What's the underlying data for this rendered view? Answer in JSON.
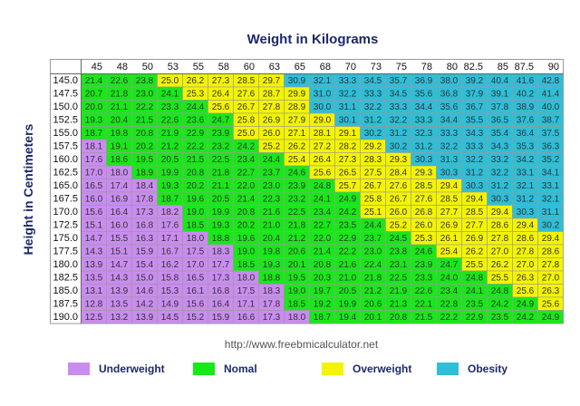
{
  "chart_data": {
    "type": "table",
    "title": "Weight in Kilograms",
    "ylabel": "Height in Centimeters",
    "weights_kg": [
      "45",
      "48",
      "50",
      "53",
      "55",
      "58",
      "60",
      "63",
      "65",
      "68",
      "70",
      "73",
      "75",
      "78",
      "80",
      "82.5",
      "85",
      "87.5",
      "90"
    ],
    "heights_cm": [
      "145.0",
      "147.5",
      "150.0",
      "152.5",
      "155.0",
      "157.5",
      "160.0",
      "162.5",
      "165.0",
      "167.5",
      "170.0",
      "172.5",
      "175.0",
      "177.5",
      "180.0",
      "182.5",
      "185.0",
      "187.5",
      "190.0"
    ],
    "bmi_values": [
      [
        "21.4",
        "22.6",
        "23.8",
        "25.0",
        "26.2",
        "27.3",
        "28.5",
        "29.7",
        "30.9",
        "32.1",
        "33.3",
        "34.5",
        "35.7",
        "36.9",
        "38.0",
        "39.2",
        "40.4",
        "41.6",
        "42.8"
      ],
      [
        "20.7",
        "21.8",
        "23.0",
        "24.1",
        "25.3",
        "26.4",
        "27.6",
        "28.7",
        "29.9",
        "31.0",
        "32.2",
        "33.3",
        "34.5",
        "35.6",
        "36.8",
        "37.9",
        "39.1",
        "40.2",
        "41.4"
      ],
      [
        "20.0",
        "21.1",
        "22.2",
        "23.3",
        "24.4",
        "25.6",
        "26.7",
        "27.8",
        "28.9",
        "30.0",
        "31.1",
        "32.2",
        "33.3",
        "34.4",
        "35.6",
        "36.7",
        "37.8",
        "38.9",
        "40.0"
      ],
      [
        "19.3",
        "20.4",
        "21.5",
        "22.6",
        "23.6",
        "24.7",
        "25.8",
        "26.9",
        "27.9",
        "29.0",
        "30.1",
        "31.2",
        "32.2",
        "33.3",
        "34.4",
        "35.5",
        "36.5",
        "37.6",
        "38.7"
      ],
      [
        "18.7",
        "19.8",
        "20.8",
        "21.9",
        "22.9",
        "23.9",
        "25.0",
        "26.0",
        "27.1",
        "28.1",
        "29.1",
        "30.2",
        "31.2",
        "32.3",
        "33.3",
        "34.3",
        "35.4",
        "36.4",
        "37.5"
      ],
      [
        "18.1",
        "19.1",
        "20.2",
        "21.2",
        "22.2",
        "23.2",
        "24.2",
        "25.2",
        "26.2",
        "27.2",
        "28.2",
        "29.2",
        "30.2",
        "31.2",
        "32.2",
        "33.3",
        "34.3",
        "35.3",
        "36.3"
      ],
      [
        "17.6",
        "18.6",
        "19.5",
        "20.5",
        "21.5",
        "22.5",
        "23.4",
        "24.4",
        "25.4",
        "26.4",
        "27.3",
        "28.3",
        "29.3",
        "30.3",
        "31.3",
        "32.2",
        "33.2",
        "34.2",
        "35.2"
      ],
      [
        "17.0",
        "18.0",
        "18.9",
        "19.9",
        "20.8",
        "21.8",
        "22.7",
        "23.7",
        "24.6",
        "25.6",
        "26.5",
        "27.5",
        "28.4",
        "29.3",
        "30.3",
        "31.2",
        "32.2",
        "33.1",
        "34.1"
      ],
      [
        "16.5",
        "17.4",
        "18.4",
        "19.3",
        "20.2",
        "21.1",
        "22.0",
        "23.0",
        "23.9",
        "24.8",
        "25.7",
        "26.7",
        "27.6",
        "28.5",
        "29.4",
        "30.3",
        "31.2",
        "32.1",
        "33.1"
      ],
      [
        "16.0",
        "16.9",
        "17.8",
        "18.7",
        "19.6",
        "20.5",
        "21.4",
        "22.3",
        "23.2",
        "24.1",
        "24.9",
        "25.8",
        "26.7",
        "27.6",
        "28.5",
        "29.4",
        "30.3",
        "31.2",
        "32.1"
      ],
      [
        "15.6",
        "16.4",
        "17.3",
        "18.2",
        "19.0",
        "19.9",
        "20.8",
        "21.6",
        "22.5",
        "23.4",
        "24.2",
        "25.1",
        "26.0",
        "26.8",
        "27.7",
        "28.5",
        "29.4",
        "30.3",
        "31.1"
      ],
      [
        "15.1",
        "16.0",
        "16.8",
        "17.6",
        "18.5",
        "19.3",
        "20.2",
        "21.0",
        "21.8",
        "22.7",
        "23.5",
        "24.4",
        "25.2",
        "26.0",
        "26.9",
        "27.7",
        "28.6",
        "29.4",
        "30.2"
      ],
      [
        "14.7",
        "15.5",
        "16.3",
        "17.1",
        "18.0",
        "18.8",
        "19.6",
        "20.4",
        "21.2",
        "22.0",
        "22.9",
        "23.7",
        "24.5",
        "25.3",
        "26.1",
        "26.9",
        "27.8",
        "28.6",
        "29.4"
      ],
      [
        "14.3",
        "15.1",
        "15.9",
        "16.7",
        "17.5",
        "18.3",
        "19.0",
        "19.8",
        "20.6",
        "21.4",
        "22.2",
        "23.0",
        "23.8",
        "24.6",
        "25.4",
        "26.2",
        "27.0",
        "27.8",
        "28.6"
      ],
      [
        "13.9",
        "14.7",
        "15.4",
        "16.2",
        "17.0",
        "17.7",
        "18.5",
        "19.3",
        "20.1",
        "20.8",
        "21.6",
        "22.4",
        "23.1",
        "23.9",
        "24.7",
        "25.5",
        "26.2",
        "27.0",
        "27.8"
      ],
      [
        "13.5",
        "14.3",
        "15.0",
        "15.8",
        "16.5",
        "17.3",
        "18.0",
        "18.8",
        "19.5",
        "20.3",
        "21.0",
        "21.8",
        "22.5",
        "23.3",
        "24.0",
        "24.8",
        "25.5",
        "26.3",
        "27.0"
      ],
      [
        "13.1",
        "13.9",
        "14.6",
        "15.3",
        "16.1",
        "16.8",
        "17.5",
        "18.3",
        "19.0",
        "19.7",
        "20.5",
        "21.2",
        "21.9",
        "22.6",
        "23.4",
        "24.1",
        "24.8",
        "25.6",
        "26.3"
      ],
      [
        "12.8",
        "13.5",
        "14.2",
        "14.9",
        "15.6",
        "16.4",
        "17.1",
        "17.8",
        "18.5",
        "19.2",
        "19.9",
        "20.6",
        "21.3",
        "22.1",
        "22.8",
        "23.5",
        "24.2",
        "24.9",
        "25.6"
      ],
      [
        "12.5",
        "13.2",
        "13.9",
        "14.5",
        "15.2",
        "15.9",
        "16.6",
        "17.3",
        "18.0",
        "18.7",
        "19.4",
        "20.1",
        "20.8",
        "21.5",
        "22.2",
        "22.9",
        "23.5",
        "24.2",
        "24.9"
      ]
    ],
    "categories": [
      {
        "name": "Underweight",
        "color": "#c98cef",
        "max": 18.5
      },
      {
        "name": "Nomal",
        "color": "#18e818",
        "max": 25
      },
      {
        "name": "Overweight",
        "color": "#f4f400",
        "max": 30
      },
      {
        "name": "Obesity",
        "color": "#2dbfd8",
        "max": 999
      }
    ],
    "header_bg": "#ffffff",
    "grid_line_color": "#9a9a9a"
  },
  "footer_url": "http://www.freebmicalculator.net",
  "legend": [
    "Underweight",
    "Nomal",
    "Overweight",
    "Obesity"
  ]
}
